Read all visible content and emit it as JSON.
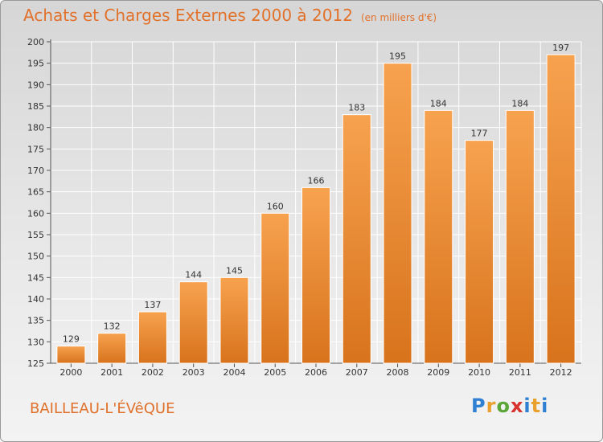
{
  "header": {
    "title": "Achats et Charges Externes 2000 à 2012",
    "subtitle": "(en milliers d'€)"
  },
  "footer": {
    "commune": "BAILLEAU-L'ÉVêQUE",
    "logo_letters": [
      "P",
      "r",
      "o",
      "x",
      "i",
      "t",
      "i"
    ]
  },
  "colors": {
    "accent": "#e2712a",
    "bar_light": "#f7a24f",
    "bar_dark": "#d8731c"
  },
  "chart_data": {
    "type": "bar",
    "categories": [
      "2000",
      "2001",
      "2002",
      "2003",
      "2004",
      "2005",
      "2006",
      "2007",
      "2008",
      "2009",
      "2010",
      "2011",
      "2012"
    ],
    "values": [
      129,
      132,
      137,
      144,
      145,
      160,
      166,
      183,
      195,
      184,
      177,
      184,
      197
    ],
    "ylim": [
      125,
      200
    ],
    "yticks": [
      125,
      130,
      135,
      140,
      145,
      150,
      155,
      160,
      165,
      170,
      175,
      180,
      185,
      190,
      195,
      200
    ],
    "grid": true
  }
}
